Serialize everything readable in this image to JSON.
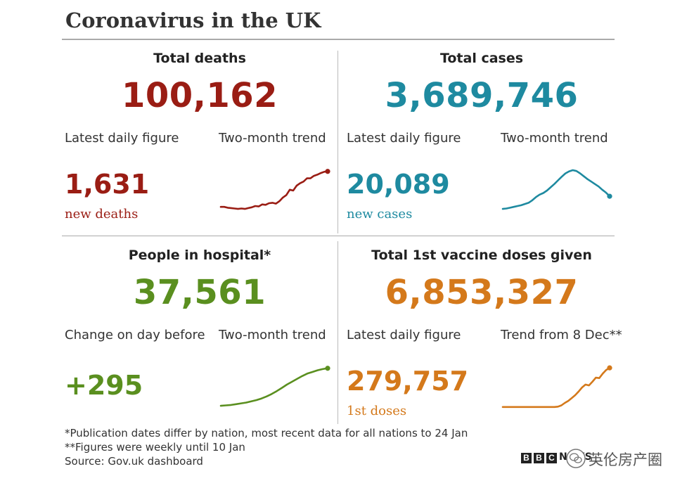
{
  "title": "Coronavirus in the UK",
  "colors": {
    "deaths": "#9a1d14",
    "cases": "#1e8aa0",
    "hospital": "#5a8f1f",
    "vaccine": "#d4791b"
  },
  "panels": {
    "deaths": {
      "heading": "Total deaths",
      "total": "100,162",
      "label_left": "Latest daily figure",
      "label_right": "Two-month trend",
      "daily": "1,631",
      "daily_sub": "new deaths"
    },
    "cases": {
      "heading": "Total cases",
      "total": "3,689,746",
      "label_left": "Latest daily figure",
      "label_right": "Two-month trend",
      "daily": "20,089",
      "daily_sub": "new cases"
    },
    "hospital": {
      "heading": "People in hospital*",
      "total": "37,561",
      "label_left": "Change on day before",
      "label_right": "Two-month trend",
      "daily": "+295",
      "daily_sub": ""
    },
    "vaccine": {
      "heading": "Total 1st vaccine doses given",
      "total": "6,853,327",
      "label_left": "Latest daily figure",
      "label_right": "Trend from 8 Dec**",
      "daily": "279,757",
      "daily_sub": "1st doses"
    }
  },
  "chart_data": [
    {
      "type": "line",
      "name": "deaths-trend",
      "title": "Two-month trend",
      "values": [
        0.1,
        0.1,
        0.08,
        0.07,
        0.06,
        0.05,
        0.06,
        0.05,
        0.07,
        0.09,
        0.12,
        0.11,
        0.16,
        0.15,
        0.19,
        0.2,
        0.18,
        0.24,
        0.33,
        0.39,
        0.52,
        0.5,
        0.62,
        0.68,
        0.72,
        0.8,
        0.8,
        0.86,
        0.89,
        0.93,
        0.96,
        0.97
      ],
      "ylim": [
        0,
        1
      ]
    },
    {
      "type": "line",
      "name": "cases-trend",
      "title": "Two-month trend",
      "values": [
        0.05,
        0.06,
        0.08,
        0.1,
        0.12,
        0.14,
        0.17,
        0.2,
        0.26,
        0.34,
        0.4,
        0.44,
        0.5,
        0.58,
        0.66,
        0.75,
        0.84,
        0.92,
        0.97,
        1.0,
        0.98,
        0.92,
        0.85,
        0.78,
        0.72,
        0.66,
        0.6,
        0.52,
        0.45,
        0.36
      ],
      "ylim": [
        0,
        1
      ]
    },
    {
      "type": "line",
      "name": "hospital-trend",
      "title": "Two-month trend",
      "values": [
        0.05,
        0.06,
        0.07,
        0.09,
        0.11,
        0.13,
        0.16,
        0.19,
        0.23,
        0.28,
        0.34,
        0.41,
        0.49,
        0.57,
        0.64,
        0.71,
        0.78,
        0.84,
        0.88,
        0.92,
        0.95,
        0.97
      ],
      "ylim": [
        0,
        1
      ]
    },
    {
      "type": "line",
      "name": "vaccine-trend",
      "title": "Trend from 8 Dec",
      "values": [
        0.02,
        0.02,
        0.02,
        0.02,
        0.02,
        0.02,
        0.02,
        0.02,
        0.02,
        0.02,
        0.02,
        0.02,
        0.02,
        0.02,
        0.02,
        0.02,
        0.03,
        0.06,
        0.12,
        0.17,
        0.24,
        0.31,
        0.4,
        0.5,
        0.57,
        0.55,
        0.64,
        0.74,
        0.73,
        0.84,
        0.93,
        0.98
      ],
      "ylim": [
        0,
        1
      ]
    }
  ],
  "footnotes": {
    "line1": "*Publication dates differ by nation, most recent data for all nations to 24 Jan",
    "line2": "**Figures were weekly until 10 Jan",
    "source": "Source: Gov.uk dashboard"
  },
  "branding": {
    "logo_letters": [
      "B",
      "B",
      "C"
    ],
    "news": "NEWS",
    "watermark": "英伦房产圈"
  }
}
